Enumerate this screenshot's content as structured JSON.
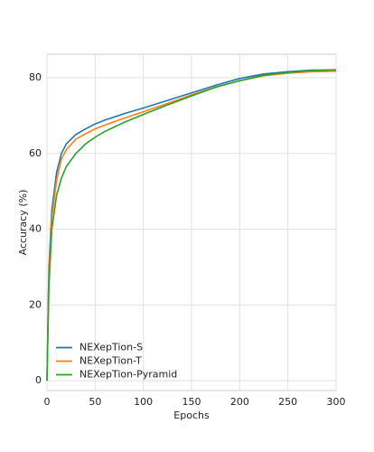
{
  "chart_data": {
    "type": "line",
    "x_label": "Epochs",
    "y_label": "Accuracy (%)",
    "x": [
      0,
      2,
      5,
      10,
      15,
      20,
      30,
      40,
      50,
      60,
      80,
      100,
      125,
      150,
      175,
      200,
      225,
      250,
      275,
      300
    ],
    "series": [
      {
        "name": "NEXepTion-S",
        "color": "#1f77b4",
        "values": [
          0,
          30,
          45,
          55,
          60,
          62.5,
          65,
          66.5,
          67.8,
          68.8,
          70.5,
          72,
          74,
          76,
          78,
          79.8,
          81,
          81.6,
          82,
          82
        ]
      },
      {
        "name": "NEXepTion-T",
        "color": "#ff7f0e",
        "values": [
          0,
          28,
          43,
          53,
          58.5,
          61,
          63.8,
          65.2,
          66.5,
          67.5,
          69.3,
          71,
          73.2,
          75.5,
          77.5,
          79.2,
          80.5,
          81.2,
          81.6,
          81.7
        ]
      },
      {
        "name": "NEXepTion-Pyramid",
        "color": "#2ca02c",
        "values": [
          0,
          25,
          40,
          49,
          53.5,
          56.5,
          60,
          62.5,
          64.3,
          65.8,
          68.2,
          70.3,
          72.8,
          75.2,
          77.5,
          79.2,
          80.7,
          81.4,
          81.9,
          82.1
        ]
      }
    ],
    "xlim": [
      0,
      300
    ],
    "xticks": [
      0,
      50,
      100,
      150,
      200,
      250,
      300
    ],
    "ylim": [
      -2.6,
      86.2
    ],
    "yticks": [
      0,
      20,
      40,
      60,
      80
    ],
    "grid": true,
    "legend": "lower-left"
  }
}
